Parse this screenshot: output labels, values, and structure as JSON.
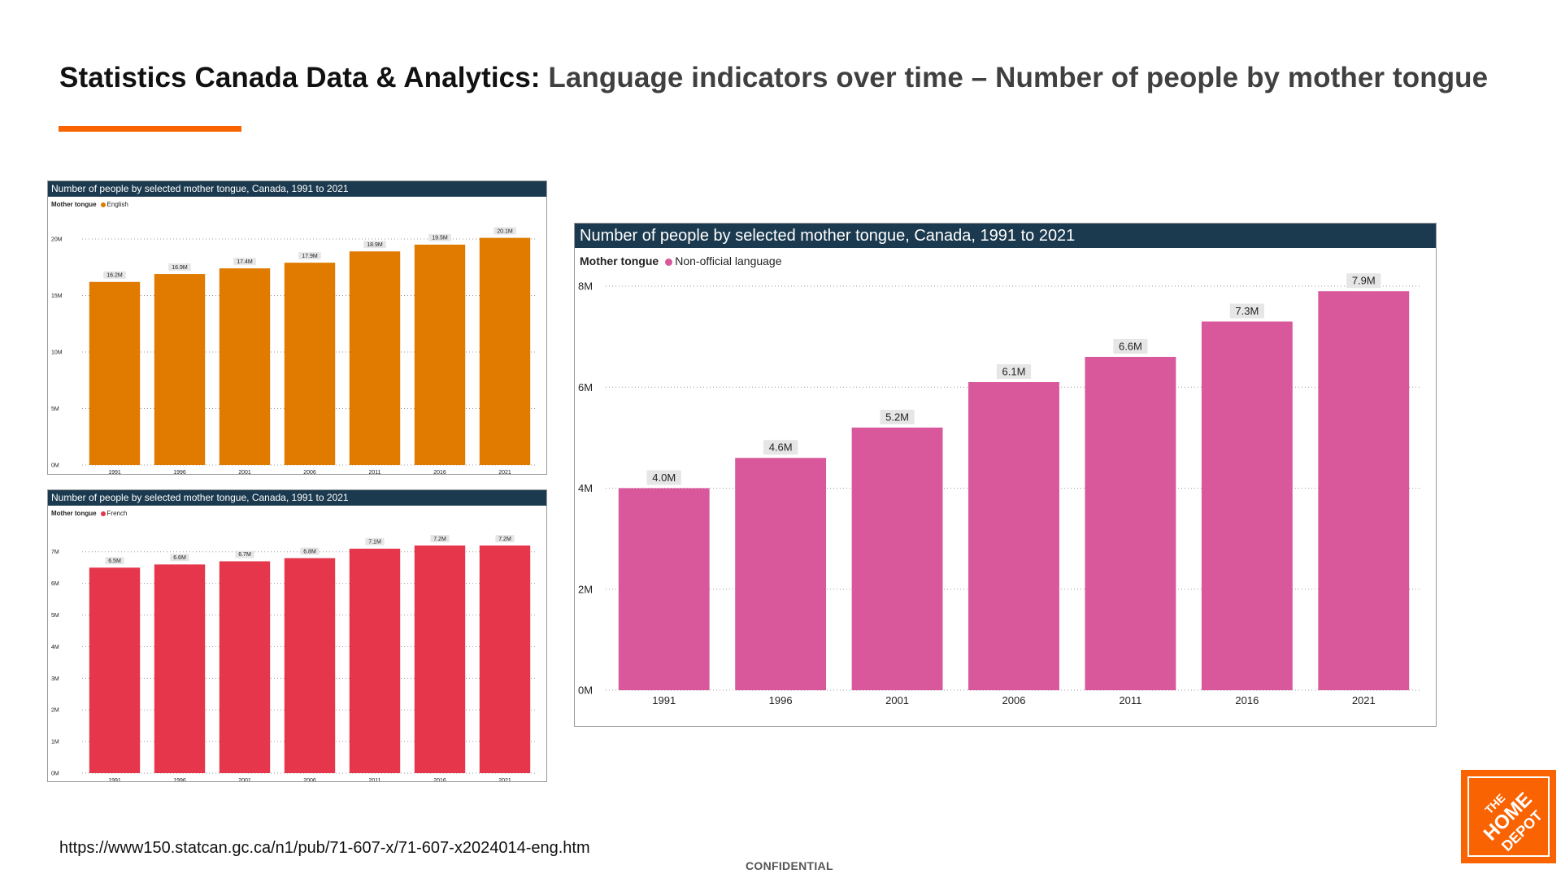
{
  "slide": {
    "title_lead": "Statistics Canada Data & Analytics:",
    "title_rest": "Language indicators over time – Number of people by mother tongue",
    "source_url": "https://www150.statcan.gc.ca/n1/pub/71-607-x/71-607-x2024014-eng.htm",
    "confidential": "CONFIDENTIAL",
    "logo_text": "THE HOME DEPOT",
    "accent_color": "#f96302"
  },
  "chart_data": [
    {
      "type": "bar",
      "title": "Number of people by selected mother tongue, Canada, 1991 to 2021",
      "legend_title": "Mother tongue",
      "series_name": "English",
      "color": "#e07b00",
      "categories": [
        "1991",
        "1996",
        "2001",
        "2006",
        "2011",
        "2016",
        "2021"
      ],
      "values": [
        16.2,
        16.9,
        17.4,
        17.9,
        18.9,
        19.5,
        20.1
      ],
      "data_labels": [
        "16.2M",
        "16.9M",
        "17.4M",
        "17.9M",
        "18.9M",
        "19.5M",
        "20.1M"
      ],
      "yticks": [
        0,
        5,
        10,
        15,
        20
      ],
      "ytick_labels": [
        "0M",
        "5M",
        "10M",
        "15M",
        "20M"
      ],
      "ylim": [
        0,
        20.5
      ],
      "grid": true
    },
    {
      "type": "bar",
      "title": "Number of people by selected mother tongue, Canada, 1991 to 2021",
      "legend_title": "Mother tongue",
      "series_name": "French",
      "color": "#e5364b",
      "categories": [
        "1991",
        "1996",
        "2001",
        "2006",
        "2011",
        "2016",
        "2021"
      ],
      "values": [
        6.5,
        6.6,
        6.7,
        6.8,
        7.1,
        7.2,
        7.2
      ],
      "data_labels": [
        "6.5M",
        "6.6M",
        "6.7M",
        "6.8M",
        "7.1M",
        "7.2M",
        "7.2M"
      ],
      "yticks": [
        0,
        1,
        2,
        3,
        4,
        5,
        6,
        7
      ],
      "ytick_labels": [
        "0M",
        "1M",
        "2M",
        "3M",
        "4M",
        "5M",
        "6M",
        "7M"
      ],
      "ylim": [
        0,
        7.2
      ],
      "grid": true
    },
    {
      "type": "bar",
      "title": "Number of people by selected mother tongue, Canada, 1991 to 2021",
      "legend_title": "Mother tongue",
      "series_name": "Non-official language",
      "color": "#d9589b",
      "categories": [
        "1991",
        "1996",
        "2001",
        "2006",
        "2011",
        "2016",
        "2021"
      ],
      "values": [
        4.0,
        4.6,
        5.2,
        6.1,
        6.6,
        7.3,
        7.9
      ],
      "data_labels": [
        "4.0M",
        "4.6M",
        "5.2M",
        "6.1M",
        "6.6M",
        "7.3M",
        "7.9M"
      ],
      "yticks": [
        0,
        2,
        4,
        6,
        8
      ],
      "ytick_labels": [
        "0M",
        "2M",
        "4M",
        "6M",
        "8M"
      ],
      "ylim": [
        0,
        8
      ],
      "grid": true
    }
  ]
}
